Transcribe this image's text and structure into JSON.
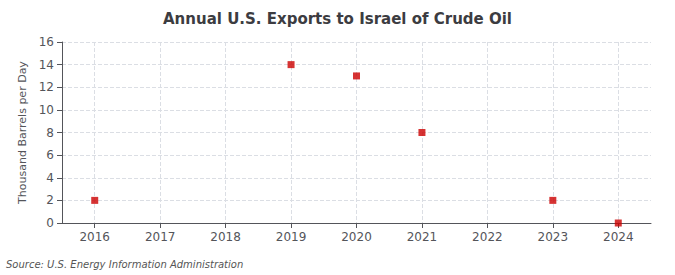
{
  "chart_data": {
    "type": "scatter",
    "title": "Annual U.S. Exports to Israel of Crude Oil",
    "ylabel": "Thousand Barrels per Day",
    "annotation": "Source: U.S. Energy Information Administration",
    "x": [
      2016,
      2017,
      2018,
      2019,
      2020,
      2021,
      2022,
      2023,
      2024
    ],
    "values": [
      2,
      null,
      null,
      14,
      13,
      8,
      null,
      2,
      0
    ],
    "color": "#cc0000",
    "marker": "square",
    "xlim": [
      2015.5,
      2024.5
    ],
    "xticks": [
      2016,
      2017,
      2018,
      2019,
      2020,
      2021,
      2022,
      2023,
      2024
    ],
    "ylim": [
      0,
      16
    ],
    "yticks": [
      0,
      2,
      4,
      6,
      8,
      10,
      12,
      14,
      16
    ],
    "grid": true
  }
}
